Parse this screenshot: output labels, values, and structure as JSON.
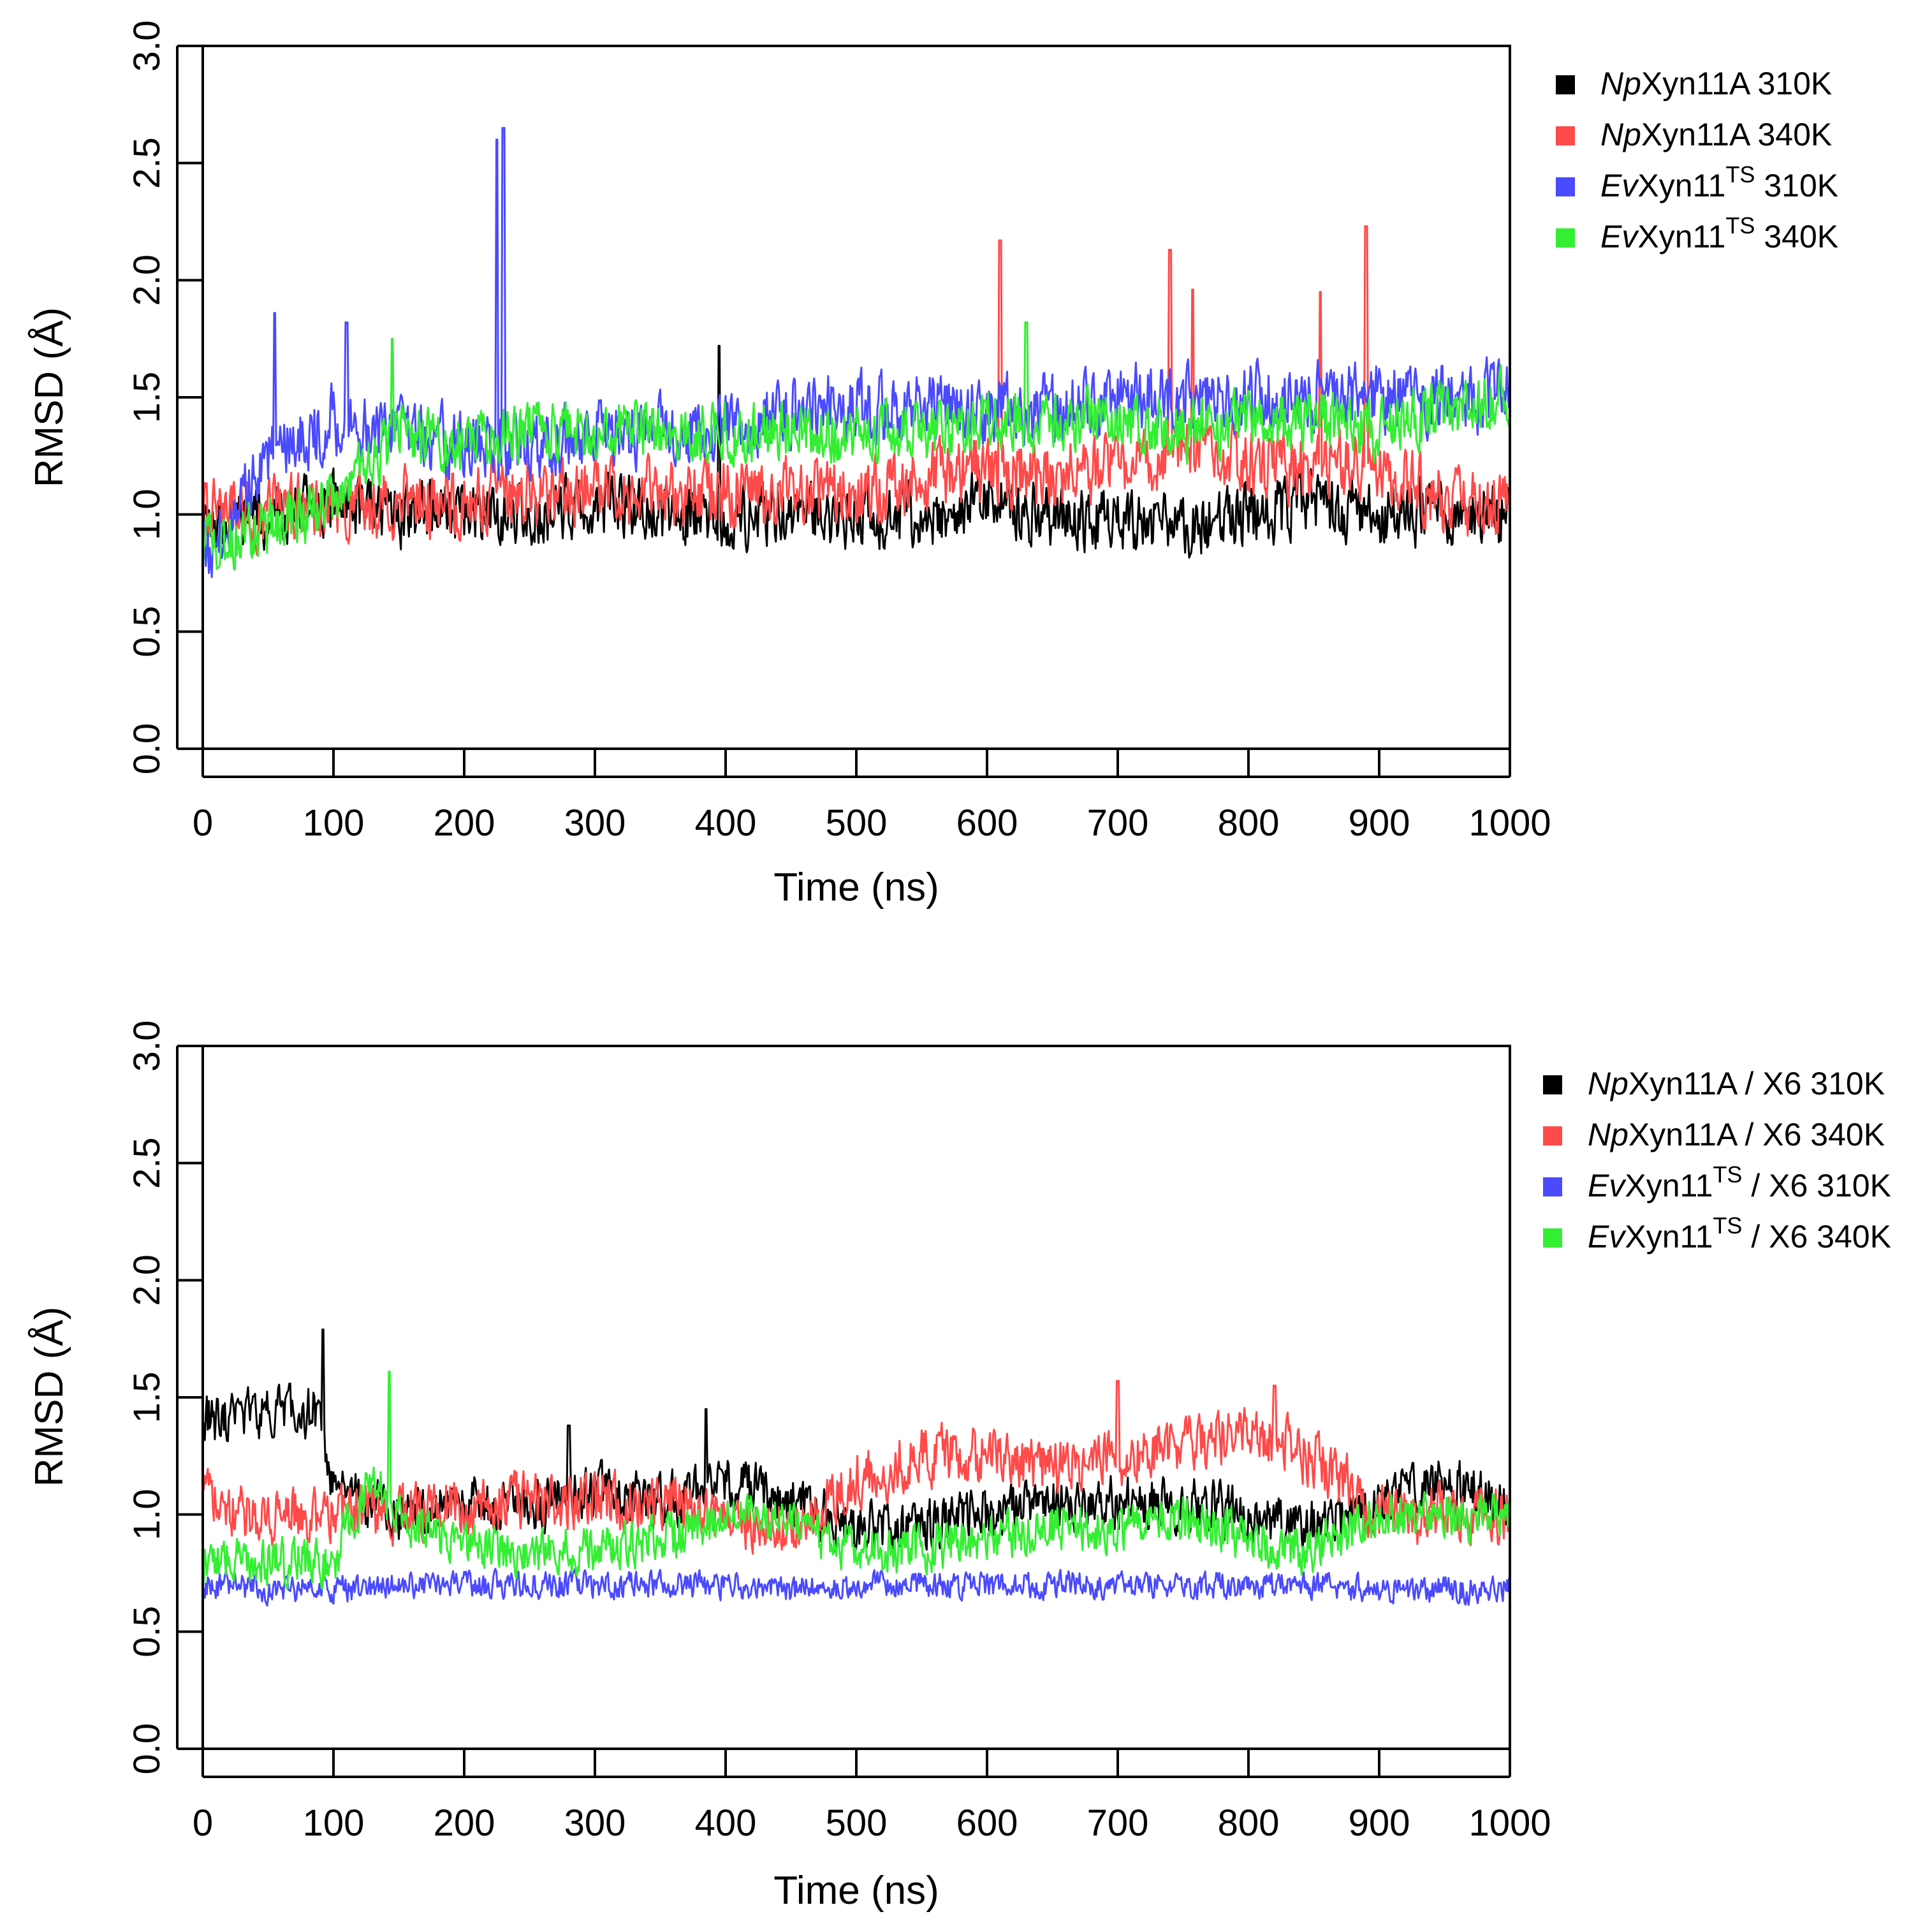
{
  "chart_data": [
    {
      "type": "line",
      "panel": "top",
      "title": "",
      "xlabel": "Time (ns)",
      "ylabel_main": "RMSD",
      "ylabel_unit": "(Å)",
      "xlim": [
        0,
        1000
      ],
      "ylim": [
        0,
        3.0
      ],
      "x_ticks": [
        0,
        100,
        200,
        300,
        400,
        500,
        600,
        700,
        800,
        900,
        1000
      ],
      "x_tick_labels": [
        "0",
        "100",
        "200",
        "300",
        "400",
        "500",
        "600",
        "700",
        "800",
        "900",
        "1000"
      ],
      "y_ticks": [
        0.0,
        0.5,
        1.0,
        1.5,
        2.0,
        2.5,
        3.0
      ],
      "y_tick_labels": [
        "0.0",
        "0.5",
        "1.0",
        "1.5",
        "2.0",
        "2.5",
        "3.0"
      ],
      "grid": false,
      "legend_position": "right-top-outside",
      "legend": [
        {
          "italic": "Np",
          "name": "Xyn11A",
          "sup": "",
          "suffix": " 310K",
          "color": "#000000"
        },
        {
          "italic": "Np",
          "name": "Xyn11A",
          "sup": "",
          "suffix": " 340K",
          "color": "#ff4a4a"
        },
        {
          "italic": "Ev",
          "name": "Xyn11",
          "sup": "TS",
          "suffix": " 310K",
          "color": "#4a4aff"
        },
        {
          "italic": "Ev",
          "name": "Xyn11",
          "sup": "TS",
          "suffix": " 340K",
          "color": "#33ee33"
        }
      ],
      "series": [
        {
          "name": "NpXyn11A 310K",
          "color": "#000000",
          "x": [
            0,
            50,
            100,
            150,
            200,
            250,
            300,
            350,
            400,
            450,
            500,
            550,
            600,
            650,
            700,
            750,
            800,
            850,
            900,
            950,
            1000
          ],
          "values": [
            0.95,
            1.0,
            1.05,
            1.0,
            1.0,
            1.0,
            1.05,
            1.0,
            1.0,
            1.0,
            1.0,
            1.0,
            1.05,
            1.0,
            0.95,
            0.95,
            1.0,
            1.05,
            1.0,
            1.0,
            1.0
          ],
          "noise": 0.12,
          "spikes": [
            {
              "x": 395,
              "y": 1.72
            }
          ]
        },
        {
          "name": "NpXyn11A 340K",
          "color": "#ff4a4a",
          "x": [
            0,
            50,
            100,
            150,
            200,
            250,
            300,
            350,
            400,
            450,
            500,
            550,
            600,
            650,
            700,
            750,
            800,
            850,
            900,
            950,
            1000
          ],
          "values": [
            1.0,
            1.0,
            1.05,
            1.05,
            1.05,
            1.1,
            1.1,
            1.1,
            1.1,
            1.1,
            1.1,
            1.15,
            1.2,
            1.15,
            1.2,
            1.3,
            1.2,
            1.2,
            1.2,
            1.05,
            1.05
          ],
          "noise": 0.13,
          "spikes": [
            {
              "x": 610,
              "y": 2.17
            },
            {
              "x": 740,
              "y": 2.13
            },
            {
              "x": 890,
              "y": 2.23
            },
            {
              "x": 855,
              "y": 1.95
            },
            {
              "x": 757,
              "y": 1.96
            }
          ]
        },
        {
          "name": "EvXyn11TS 310K",
          "color": "#4a4aff",
          "x": [
            0,
            50,
            100,
            150,
            200,
            250,
            300,
            350,
            400,
            450,
            500,
            550,
            600,
            650,
            700,
            750,
            800,
            850,
            900,
            950,
            1000
          ],
          "values": [
            0.8,
            1.25,
            1.4,
            1.35,
            1.3,
            1.3,
            1.35,
            1.35,
            1.35,
            1.45,
            1.45,
            1.45,
            1.45,
            1.45,
            1.5,
            1.5,
            1.5,
            1.5,
            1.5,
            1.5,
            1.5
          ],
          "noise": 0.13,
          "spikes": [
            {
              "x": 225,
              "y": 2.6
            },
            {
              "x": 230,
              "y": 2.65
            },
            {
              "x": 55,
              "y": 1.86
            },
            {
              "x": 110,
              "y": 1.82
            }
          ]
        },
        {
          "name": "EvXyn11TS 340K",
          "color": "#33ee33",
          "x": [
            0,
            50,
            100,
            150,
            200,
            250,
            300,
            350,
            400,
            450,
            500,
            550,
            600,
            650,
            700,
            750,
            800,
            850,
            900,
            950,
            1000
          ],
          "values": [
            0.85,
            0.95,
            1.05,
            1.35,
            1.3,
            1.35,
            1.35,
            1.35,
            1.35,
            1.35,
            1.35,
            1.35,
            1.4,
            1.4,
            1.4,
            1.35,
            1.4,
            1.4,
            1.35,
            1.45,
            1.5
          ],
          "noise": 0.11,
          "spikes": [
            {
              "x": 145,
              "y": 1.75
            },
            {
              "x": 630,
              "y": 1.82
            }
          ]
        }
      ]
    },
    {
      "type": "line",
      "panel": "bottom",
      "title": "",
      "xlabel": "Time (ns)",
      "ylabel_main": "RMSD",
      "ylabel_unit": "(Å)",
      "xlim": [
        0,
        1000
      ],
      "ylim": [
        0,
        3.0
      ],
      "x_ticks": [
        0,
        100,
        200,
        300,
        400,
        500,
        600,
        700,
        800,
        900,
        1000
      ],
      "x_tick_labels": [
        "0",
        "100",
        "200",
        "300",
        "400",
        "500",
        "600",
        "700",
        "800",
        "900",
        "1000"
      ],
      "y_ticks": [
        0.0,
        0.5,
        1.0,
        1.5,
        2.0,
        2.5,
        3.0
      ],
      "y_tick_labels": [
        "0.0",
        "0.5",
        "1.0",
        "1.5",
        "2.0",
        "2.5",
        "3.0"
      ],
      "grid": false,
      "legend_position": "right-top-outside",
      "legend": [
        {
          "italic": "Np",
          "name": "Xyn11A",
          "sup": "",
          "suffix": " / X6 310K",
          "color": "#000000"
        },
        {
          "italic": "Np",
          "name": "Xyn11A",
          "sup": "",
          "suffix": " / X6 340K",
          "color": "#ff4a4a"
        },
        {
          "italic": "Ev",
          "name": "Xyn11",
          "sup": "TS",
          "suffix": " / X6 310K",
          "color": "#4a4aff"
        },
        {
          "italic": "Ev",
          "name": "Xyn11",
          "sup": "TS",
          "suffix": " / X6 340K",
          "color": "#33ee33"
        }
      ],
      "series": [
        {
          "name": "NpXyn11A / X6 310K",
          "color": "#000000",
          "x": [
            0,
            50,
            90,
            100,
            150,
            200,
            250,
            300,
            350,
            400,
            450,
            500,
            550,
            600,
            650,
            700,
            750,
            800,
            850,
            900,
            950,
            1000
          ],
          "values": [
            1.4,
            1.45,
            1.45,
            1.1,
            1.0,
            1.05,
            1.05,
            1.1,
            1.05,
            1.15,
            1.05,
            0.95,
            0.95,
            1.0,
            1.05,
            1.05,
            1.05,
            1.0,
            0.95,
            1.05,
            1.15,
            1.05
          ],
          "noise": 0.1,
          "spikes": [
            {
              "x": 92,
              "y": 1.79
            },
            {
              "x": 385,
              "y": 1.45
            },
            {
              "x": 280,
              "y": 1.38
            }
          ]
        },
        {
          "name": "NpXyn11A / X6 340K",
          "color": "#ff4a4a",
          "x": [
            0,
            50,
            100,
            150,
            200,
            250,
            300,
            350,
            400,
            450,
            500,
            550,
            600,
            650,
            700,
            750,
            800,
            850,
            900,
            950,
            1000
          ],
          "values": [
            1.05,
            1.0,
            1.0,
            1.0,
            1.05,
            1.05,
            1.05,
            1.05,
            1.0,
            0.95,
            1.15,
            1.25,
            1.25,
            1.2,
            1.25,
            1.3,
            1.35,
            1.25,
            1.0,
            1.0,
            1.0
          ],
          "noise": 0.11,
          "spikes": [
            {
              "x": 700,
              "y": 1.57
            },
            {
              "x": 820,
              "y": 1.55
            }
          ]
        },
        {
          "name": "EvXyn11TS / X6 310K",
          "color": "#4a4aff",
          "x": [
            0,
            50,
            100,
            150,
            200,
            250,
            300,
            350,
            400,
            450,
            500,
            550,
            600,
            650,
            700,
            750,
            800,
            850,
            900,
            950,
            1000
          ],
          "values": [
            0.7,
            0.68,
            0.68,
            0.7,
            0.7,
            0.7,
            0.7,
            0.7,
            0.7,
            0.68,
            0.7,
            0.7,
            0.7,
            0.7,
            0.7,
            0.7,
            0.7,
            0.7,
            0.68,
            0.68,
            0.68
          ],
          "noise": 0.05,
          "spikes": []
        },
        {
          "name": "EvXyn11TS / X6 340K",
          "color": "#33ee33",
          "x": [
            0,
            50,
            100,
            130,
            150,
            200,
            250,
            300,
            350,
            400,
            450,
            500,
            550,
            600,
            650,
            700,
            750,
            800,
            850,
            900,
            950,
            1000
          ],
          "values": [
            0.8,
            0.8,
            0.8,
            1.15,
            1.0,
            0.85,
            0.85,
            0.85,
            0.9,
            1.0,
            0.95,
            0.85,
            0.85,
            0.9,
            0.95,
            0.95,
            1.0,
            0.9,
            0.85,
            1.0,
            1.0,
            1.0
          ],
          "noise": 0.09,
          "spikes": [
            {
              "x": 143,
              "y": 1.61
            }
          ]
        }
      ]
    }
  ]
}
